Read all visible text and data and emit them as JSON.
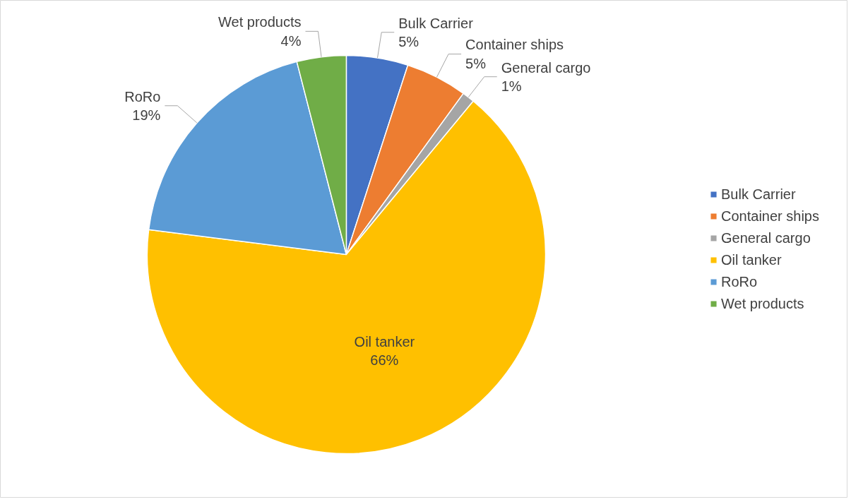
{
  "chart_data": {
    "type": "pie",
    "categories": [
      "Bulk Carrier",
      "Container ships",
      "General cargo",
      "Oil tanker",
      "RoRo",
      "Wet products"
    ],
    "values": [
      5,
      5,
      1,
      66,
      19,
      4
    ],
    "value_labels": [
      "5%",
      "5%",
      "1%",
      "66%",
      "19%",
      "4%"
    ],
    "colors": [
      "#4472c4",
      "#ed7d31",
      "#a5a5a5",
      "#ffc000",
      "#5b9bd5",
      "#70ad47"
    ],
    "legend": "right"
  }
}
